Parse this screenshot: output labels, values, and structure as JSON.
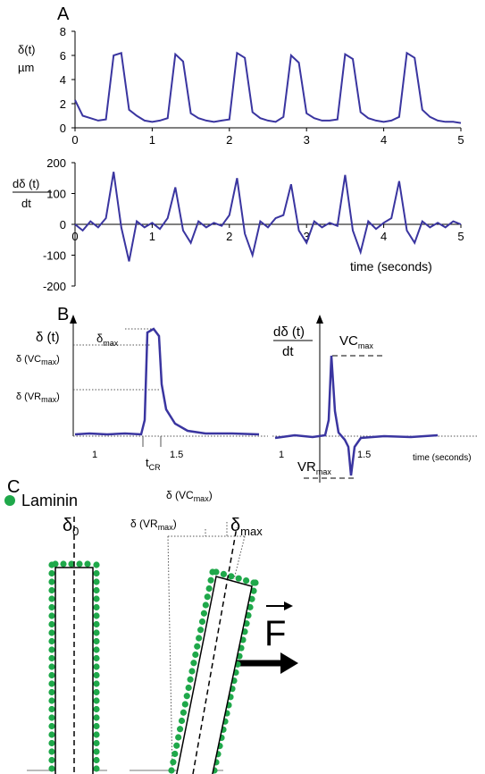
{
  "chart_data": [
    {
      "type": "line",
      "panel": "A",
      "ylabel": [
        "δ(t)",
        "µm"
      ],
      "x": [
        0,
        0.1,
        0.2,
        0.3,
        0.4,
        0.5,
        0.6,
        0.7,
        0.8,
        0.9,
        1,
        1.1,
        1.2,
        1.3,
        1.4,
        1.5,
        1.6,
        1.7,
        1.8,
        1.9,
        2,
        2.1,
        2.2,
        2.3,
        2.4,
        2.5,
        2.6,
        2.7,
        2.8,
        2.9,
        3,
        3.1,
        3.2,
        3.3,
        3.4,
        3.5,
        3.6,
        3.7,
        3.8,
        3.9,
        4,
        4.1,
        4.2,
        4.3,
        4.4,
        4.5,
        4.6,
        4.7,
        4.8,
        4.9,
        5
      ],
      "series": [
        {
          "color": "#3a35a0",
          "values": [
            2.3,
            1,
            0.8,
            0.6,
            0.7,
            6,
            6.2,
            1.5,
            1,
            0.6,
            0.5,
            0.6,
            0.8,
            6.1,
            5.5,
            1.2,
            0.8,
            0.6,
            0.5,
            0.6,
            0.7,
            6.2,
            5.8,
            1.3,
            0.8,
            0.6,
            0.5,
            0.9,
            6,
            5.4,
            1.2,
            0.8,
            0.6,
            0.6,
            0.7,
            6.1,
            5.7,
            1.3,
            0.8,
            0.6,
            0.5,
            0.6,
            0.9,
            6.2,
            5.8,
            1.5,
            0.9,
            0.6,
            0.5,
            0.5,
            0.4
          ]
        }
      ],
      "xlim": [
        0,
        5
      ],
      "xticks": [
        0,
        1,
        2,
        3,
        4,
        5
      ],
      "ylim": [
        0,
        8
      ],
      "yticks": [
        0,
        2,
        4,
        6,
        8
      ]
    },
    {
      "type": "line",
      "ylabel": [
        "dδ (t)",
        "dt"
      ],
      "xlabel": "time (seconds)",
      "x": [
        0,
        0.1,
        0.2,
        0.3,
        0.4,
        0.5,
        0.6,
        0.7,
        0.8,
        0.9,
        1,
        1.1,
        1.2,
        1.3,
        1.4,
        1.5,
        1.6,
        1.7,
        1.8,
        1.9,
        2,
        2.1,
        2.2,
        2.3,
        2.4,
        2.5,
        2.6,
        2.7,
        2.8,
        2.9,
        3,
        3.1,
        3.2,
        3.3,
        3.4,
        3.5,
        3.6,
        3.7,
        3.8,
        3.9,
        4,
        4.1,
        4.2,
        4.3,
        4.4,
        4.5,
        4.6,
        4.7,
        4.8,
        4.9,
        5
      ],
      "series": [
        {
          "color": "#3a35a0",
          "values": [
            0,
            -20,
            10,
            -10,
            20,
            170,
            -10,
            -120,
            10,
            -10,
            5,
            -15,
            20,
            120,
            -20,
            -60,
            10,
            -10,
            5,
            -5,
            30,
            150,
            -30,
            -100,
            10,
            -10,
            20,
            30,
            130,
            -20,
            -60,
            10,
            -10,
            5,
            -5,
            160,
            -20,
            -90,
            10,
            -15,
            5,
            20,
            140,
            -20,
            -60,
            10,
            -10,
            5,
            -10,
            10,
            0
          ]
        }
      ],
      "xlim": [
        0,
        5
      ],
      "xticks": [
        0,
        1,
        2,
        3,
        4,
        5
      ],
      "ylim": [
        -200,
        200
      ],
      "yticks": [
        -200,
        -100,
        0,
        100,
        200
      ]
    }
  ],
  "panel_b": {
    "label": "B",
    "left_ylabel": "δ (t)",
    "delta_max": [
      "δ",
      "max"
    ],
    "delta_vc": [
      "δ (VC",
      "max",
      ")"
    ],
    "delta_vr": [
      "δ (VR",
      "max",
      ")"
    ],
    "ticks_left": [
      "1",
      "1.5"
    ],
    "t_cr": [
      "t",
      "CR"
    ],
    "right_ylabel": [
      "dδ (t)",
      "dt"
    ],
    "vc_max": [
      "VC",
      "max"
    ],
    "vr_max": [
      "VR",
      "max"
    ],
    "ticks_right": [
      "1",
      "1.5"
    ],
    "xlabel": "time (seconds)"
  },
  "panel_c": {
    "label": "C",
    "legend": "Laminin",
    "delta_0": [
      "δ",
      "0"
    ],
    "delta_vc": [
      "δ (VC",
      "max",
      ")"
    ],
    "delta_vr": [
      "δ (VR",
      "max",
      ")"
    ],
    "delta_max": [
      "δ",
      "max"
    ],
    "force": "F"
  }
}
